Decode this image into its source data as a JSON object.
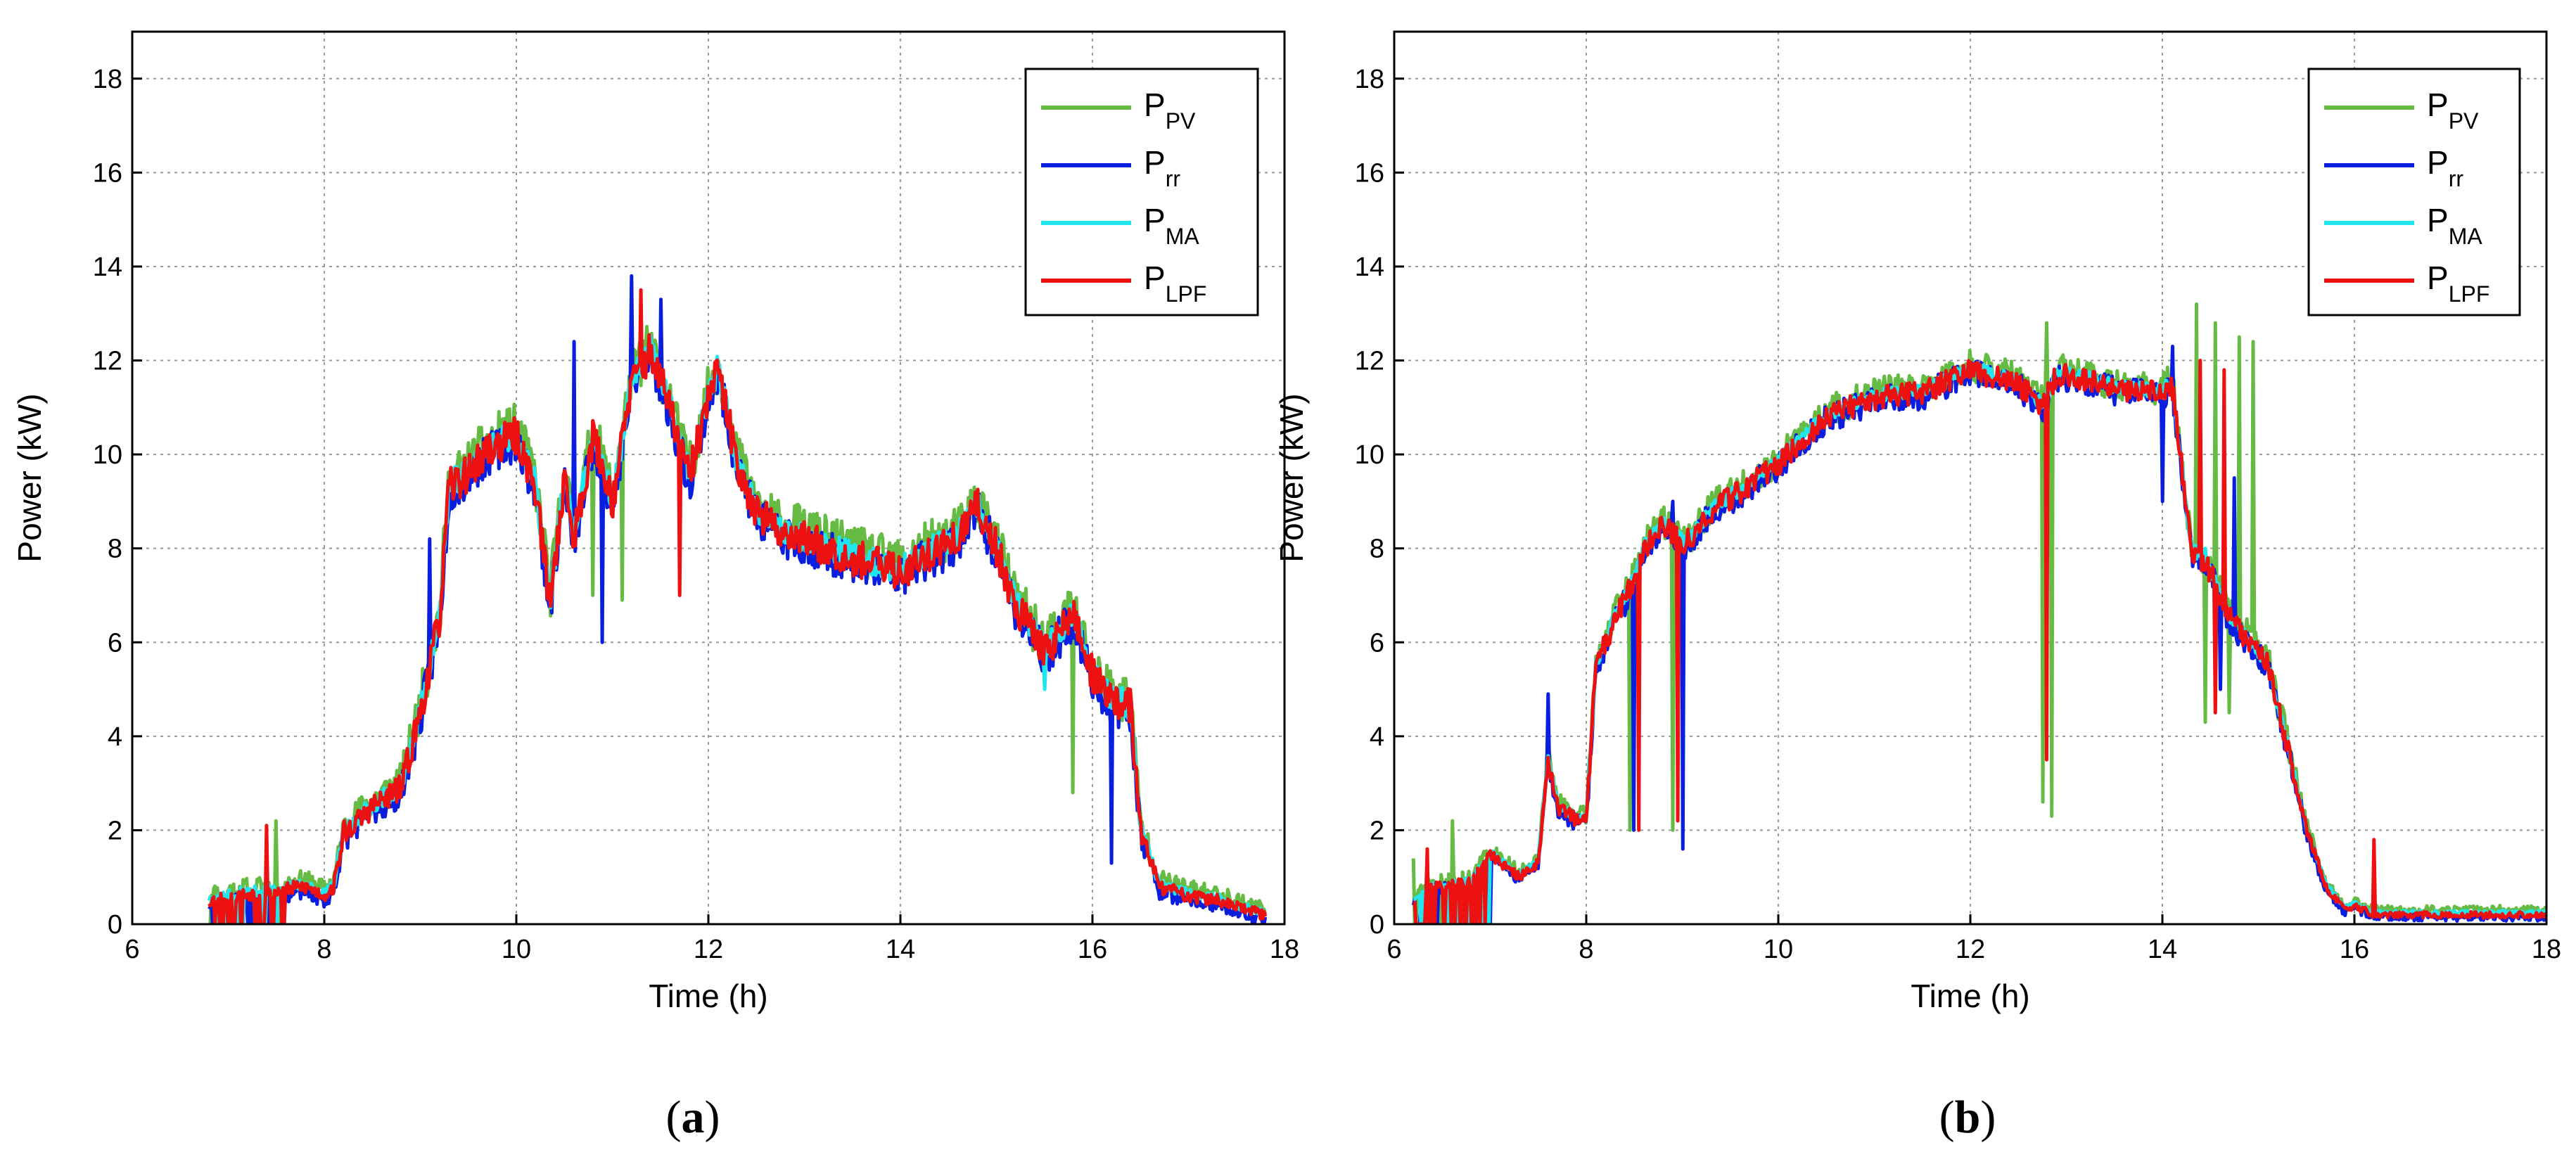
{
  "chart_data": [
    {
      "type": "line",
      "panel_label_pre": "(",
      "panel_label": "a",
      "panel_label_post": ")",
      "xlabel": "Time (h)",
      "ylabel": "Power (kW)",
      "xlim": [
        6,
        18
      ],
      "ylim": [
        0,
        19
      ],
      "xticks": [
        "6",
        "8",
        "10",
        "12",
        "14",
        "16",
        "18"
      ],
      "yticks": [
        "0",
        "2",
        "4",
        "6",
        "8",
        "10",
        "12",
        "14",
        "16",
        "18"
      ],
      "grid": true,
      "legend_position": "top-right",
      "series": [
        {
          "name": "PPV",
          "main": "P",
          "sub": "PV",
          "color": "#66bb44",
          "offset": 0.15,
          "jitter": 0.55,
          "seed": 11,
          "spikes": [
            [
              10.3,
              8.4
            ],
            [
              10.8,
              7.0
            ],
            [
              11.1,
              6.9
            ],
            [
              15.8,
              2.8
            ],
            [
              7.5,
              2.2
            ]
          ]
        },
        {
          "name": "Prr",
          "main": "P",
          "sub": "rr",
          "color": "#0a1ee0",
          "offset": -0.1,
          "jitter": 0.45,
          "seed": 23,
          "spikes": [
            [
              9.1,
              8.2
            ],
            [
              10.6,
              12.4
            ],
            [
              11.2,
              13.8
            ],
            [
              11.5,
              13.3
            ],
            [
              10.9,
              6.0
            ],
            [
              16.2,
              1.3
            ]
          ]
        },
        {
          "name": "PMA",
          "main": "P",
          "sub": "MA",
          "color": "#22e6ee",
          "offset": 0.05,
          "jitter": 0.3,
          "seed": 37,
          "spikes": [
            [
              15.5,
              5.0
            ]
          ]
        },
        {
          "name": "PLPF",
          "main": "P",
          "sub": "LPF",
          "color": "#ee1111",
          "offset": 0.0,
          "jitter": 0.4,
          "seed": 53,
          "spikes": [
            [
              11.3,
              13.5
            ],
            [
              7.4,
              2.1
            ],
            [
              8.2,
              2.2
            ],
            [
              11.7,
              7.0
            ]
          ]
        }
      ],
      "profile": {
        "t": [
          6.8,
          7.0,
          7.5,
          7.8,
          8.0,
          8.1,
          8.2,
          8.5,
          8.8,
          9.0,
          9.2,
          9.3,
          9.5,
          9.7,
          10.0,
          10.2,
          10.35,
          10.5,
          10.6,
          10.8,
          11.0,
          11.2,
          11.4,
          11.6,
          11.8,
          12.0,
          12.1,
          12.3,
          12.5,
          12.7,
          13.0,
          13.5,
          14.0,
          14.3,
          14.6,
          14.8,
          15.0,
          15.2,
          15.5,
          15.8,
          16.0,
          16.2,
          16.4,
          16.5,
          16.7,
          17.0,
          17.3,
          17.6,
          17.8
        ],
        "p": [
          0.5,
          0.6,
          0.7,
          0.8,
          0.6,
          0.8,
          1.9,
          2.5,
          2.9,
          4.5,
          6.5,
          9.3,
          9.6,
          10.1,
          10.4,
          9.3,
          6.8,
          9.5,
          8.2,
          10.4,
          9.0,
          11.5,
          12.2,
          11.0,
          9.5,
          11.2,
          11.8,
          9.8,
          8.8,
          8.4,
          8.2,
          7.8,
          7.5,
          7.9,
          8.2,
          8.9,
          8.0,
          6.8,
          5.8,
          6.6,
          5.3,
          4.8,
          4.6,
          2.0,
          0.8,
          0.6,
          0.5,
          0.3,
          0.2
        ]
      }
    },
    {
      "type": "line",
      "panel_label_pre": "(",
      "panel_label": "b",
      "panel_label_post": ")",
      "xlabel": "Time (h)",
      "ylabel": "Power (kW)",
      "xlim": [
        6,
        18
      ],
      "ylim": [
        0,
        19
      ],
      "xticks": [
        "6",
        "8",
        "10",
        "12",
        "14",
        "16",
        "18"
      ],
      "yticks": [
        "0",
        "2",
        "4",
        "6",
        "8",
        "10",
        "12",
        "14",
        "16",
        "18"
      ],
      "grid": true,
      "legend_position": "top-right",
      "series": [
        {
          "name": "PPV",
          "main": "P",
          "sub": "PV",
          "color": "#66bb44",
          "offset": 0.1,
          "jitter": 0.35,
          "seed": 71,
          "spikes": [
            [
              8.45,
              2.0
            ],
            [
              8.9,
              2.0
            ],
            [
              12.75,
              2.6
            ],
            [
              12.8,
              12.8
            ],
            [
              12.85,
              2.3
            ],
            [
              14.35,
              13.2
            ],
            [
              14.45,
              4.3
            ],
            [
              14.55,
              12.8
            ],
            [
              14.7,
              4.5
            ],
            [
              14.8,
              12.5
            ],
            [
              14.95,
              12.4
            ],
            [
              6.2,
              1.4
            ],
            [
              6.6,
              2.2
            ]
          ]
        },
        {
          "name": "Prr",
          "main": "P",
          "sub": "rr",
          "color": "#0a1ee0",
          "offset": -0.05,
          "jitter": 0.3,
          "seed": 83,
          "spikes": [
            [
              7.6,
              4.9
            ],
            [
              8.5,
              2.0
            ],
            [
              8.9,
              9.0
            ],
            [
              9.0,
              1.6
            ],
            [
              14.0,
              9.0
            ],
            [
              14.1,
              12.3
            ],
            [
              14.6,
              5.0
            ],
            [
              14.75,
              9.5
            ]
          ]
        },
        {
          "name": "PMA",
          "main": "P",
          "sub": "MA",
          "color": "#22e6ee",
          "offset": 0.05,
          "jitter": 0.15,
          "seed": 97,
          "spikes": [
            [
              8.95,
              6.0
            ],
            [
              14.45,
              8.0
            ]
          ]
        },
        {
          "name": "PLPF",
          "main": "P",
          "sub": "LPF",
          "color": "#ee1111",
          "offset": 0.0,
          "jitter": 0.25,
          "seed": 109,
          "spikes": [
            [
              8.55,
              2.0
            ],
            [
              8.95,
              2.2
            ],
            [
              12.8,
              3.5
            ],
            [
              14.4,
              12.0
            ],
            [
              14.55,
              4.5
            ],
            [
              14.65,
              11.8
            ],
            [
              16.2,
              1.8
            ],
            [
              6.35,
              1.6
            ]
          ]
        }
      ],
      "profile": {
        "t": [
          6.2,
          6.4,
          6.8,
          7.0,
          7.3,
          7.5,
          7.6,
          7.7,
          7.9,
          8.0,
          8.1,
          8.3,
          8.5,
          8.6,
          8.8,
          9.0,
          9.1,
          9.3,
          9.6,
          10.0,
          10.5,
          11.0,
          11.5,
          12.0,
          12.5,
          12.75,
          12.9,
          13.2,
          13.5,
          14.0,
          14.1,
          14.3,
          14.5,
          14.7,
          14.9,
          15.1,
          15.3,
          15.5,
          15.7,
          15.9,
          16.0,
          16.2,
          16.6,
          17.0,
          17.5,
          18.0
        ],
        "p": [
          0.5,
          0.8,
          0.9,
          1.5,
          1.0,
          1.3,
          3.5,
          2.5,
          2.2,
          2.2,
          5.5,
          6.5,
          7.3,
          8.0,
          8.5,
          8.1,
          8.2,
          8.8,
          9.2,
          9.8,
          10.8,
          11.2,
          11.3,
          11.8,
          11.5,
          11.0,
          11.7,
          11.6,
          11.4,
          11.3,
          11.5,
          8.0,
          7.5,
          6.5,
          6.0,
          5.5,
          3.8,
          2.0,
          0.8,
          0.3,
          0.4,
          0.2,
          0.2,
          0.2,
          0.2,
          0.2
        ]
      }
    }
  ]
}
